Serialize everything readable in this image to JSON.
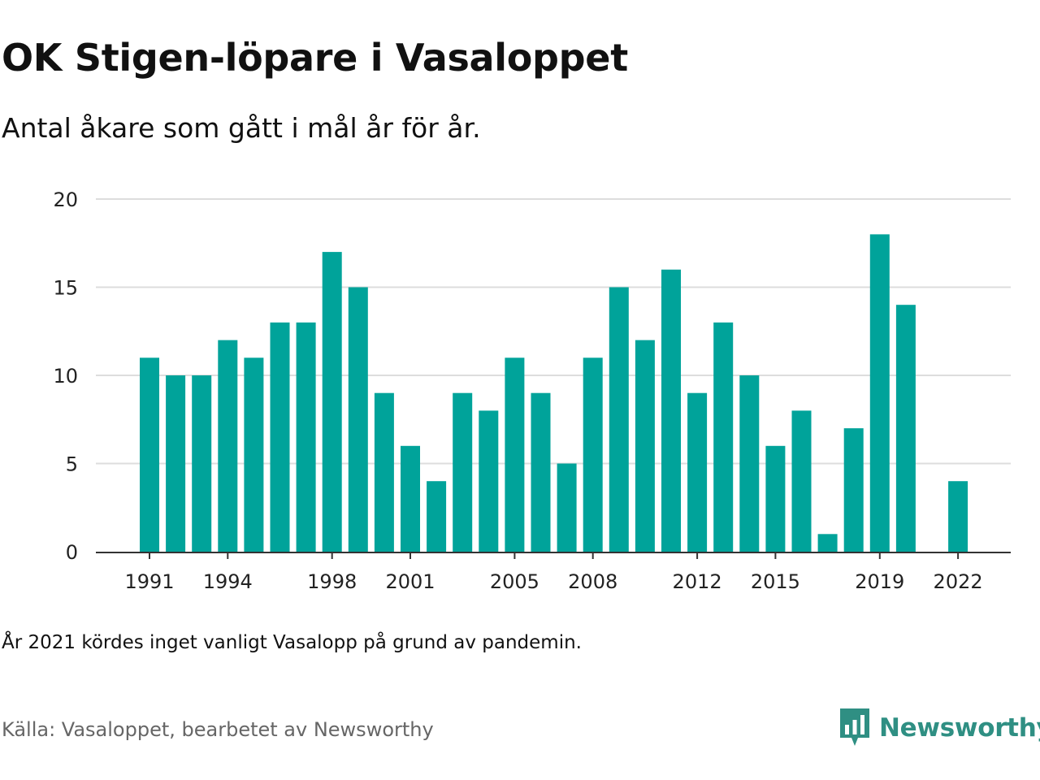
{
  "title": "OK Stigen-löpare i Vasaloppet",
  "subtitle": "Antal åkare som gått i mål år för år.",
  "note": "År 2021 kördes inget vanligt Vasalopp på grund av pandemin.",
  "source": "Källa: Vasaloppet, bearbetet av Newsworthy",
  "brand": {
    "name": "Newsworthy",
    "icon": "newsworthy-bar-chart-logo-icon",
    "color": "#2f8f83"
  },
  "colors": {
    "bar": "#00a39a",
    "grid": "#dddddd",
    "axis": "#333333"
  },
  "chart_data": {
    "type": "bar",
    "x": [
      1991,
      1992,
      1993,
      1994,
      1995,
      1996,
      1997,
      1998,
      1999,
      2000,
      2001,
      2002,
      2003,
      2004,
      2005,
      2006,
      2007,
      2008,
      2009,
      2010,
      2011,
      2012,
      2013,
      2014,
      2015,
      2016,
      2017,
      2018,
      2019,
      2020,
      2021,
      2022
    ],
    "values": [
      11,
      10,
      10,
      12,
      11,
      13,
      13,
      17,
      15,
      9,
      6,
      4,
      9,
      8,
      11,
      9,
      5,
      11,
      15,
      12,
      16,
      9,
      13,
      10,
      6,
      8,
      1,
      7,
      18,
      14,
      null,
      4
    ],
    "x_tick_labels": [
      "1991",
      "1994",
      "1998",
      "2001",
      "2005",
      "2008",
      "2012",
      "2015",
      "2019",
      "2022"
    ],
    "y_ticks": [
      0,
      5,
      10,
      15,
      20
    ],
    "ylim": [
      0,
      20
    ],
    "grid": true,
    "legend": "none"
  }
}
